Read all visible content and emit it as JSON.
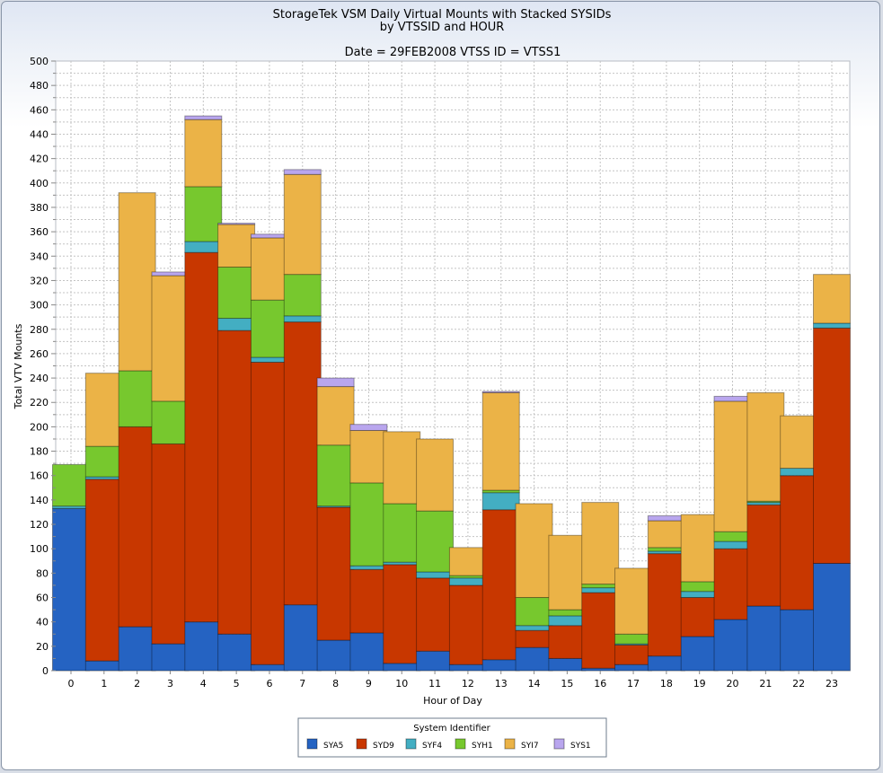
{
  "chart_data": {
    "type": "bar",
    "stacked": true,
    "title": "StorageTek VSM Daily Virtual Mounts with Stacked SYSIDs",
    "subtitle": "by VTSSID and HOUR",
    "subtitle2": "Date = 29FEB2008 VTSS ID = VTSS1",
    "xlabel": "Hour of Day",
    "ylabel": "Total VTV Mounts",
    "ylim": [
      0,
      500
    ],
    "ytick_step": 20,
    "grid": true,
    "legend_title": "System Identifier",
    "legend_position": "bottom",
    "categories": [
      "0",
      "1",
      "2",
      "3",
      "4",
      "5",
      "6",
      "7",
      "8",
      "9",
      "10",
      "11",
      "12",
      "13",
      "14",
      "15",
      "16",
      "17",
      "18",
      "19",
      "20",
      "21",
      "22",
      "23"
    ],
    "series": [
      {
        "name": "SYA5",
        "color": "#2563c2",
        "values": [
          133,
          8,
          36,
          22,
          40,
          30,
          5,
          54,
          25,
          31,
          6,
          16,
          5,
          9,
          19,
          10,
          2,
          5,
          12,
          28,
          42,
          53,
          50,
          88
        ]
      },
      {
        "name": "SYD9",
        "color": "#c83700",
        "values": [
          0,
          149,
          164,
          164,
          303,
          249,
          248,
          232,
          109,
          52,
          81,
          60,
          65,
          123,
          14,
          27,
          62,
          16,
          84,
          32,
          58,
          83,
          110,
          193
        ]
      },
      {
        "name": "SYF4",
        "color": "#43aec2",
        "values": [
          2,
          2,
          0,
          0,
          9,
          10,
          4,
          5,
          1,
          3,
          2,
          5,
          6,
          14,
          4,
          8,
          4,
          1,
          2,
          5,
          6,
          2,
          6,
          4
        ]
      },
      {
        "name": "SYH1",
        "color": "#77c82e",
        "values": [
          34,
          25,
          46,
          35,
          45,
          42,
          47,
          34,
          50,
          68,
          48,
          50,
          2,
          2,
          23,
          5,
          3,
          8,
          3,
          8,
          8,
          1,
          0,
          0
        ]
      },
      {
        "name": "SYI7",
        "color": "#ebb347",
        "values": [
          0,
          60,
          146,
          103,
          55,
          35,
          51,
          82,
          48,
          43,
          59,
          59,
          23,
          80,
          77,
          61,
          67,
          54,
          22,
          55,
          107,
          89,
          43,
          40
        ]
      },
      {
        "name": "SYS1",
        "color": "#b9a6ee",
        "values": [
          0,
          0,
          0,
          3,
          3,
          1,
          3,
          4,
          7,
          5,
          0,
          0,
          0,
          1,
          0,
          0,
          0,
          0,
          4,
          0,
          4,
          0,
          0,
          0
        ]
      }
    ]
  }
}
